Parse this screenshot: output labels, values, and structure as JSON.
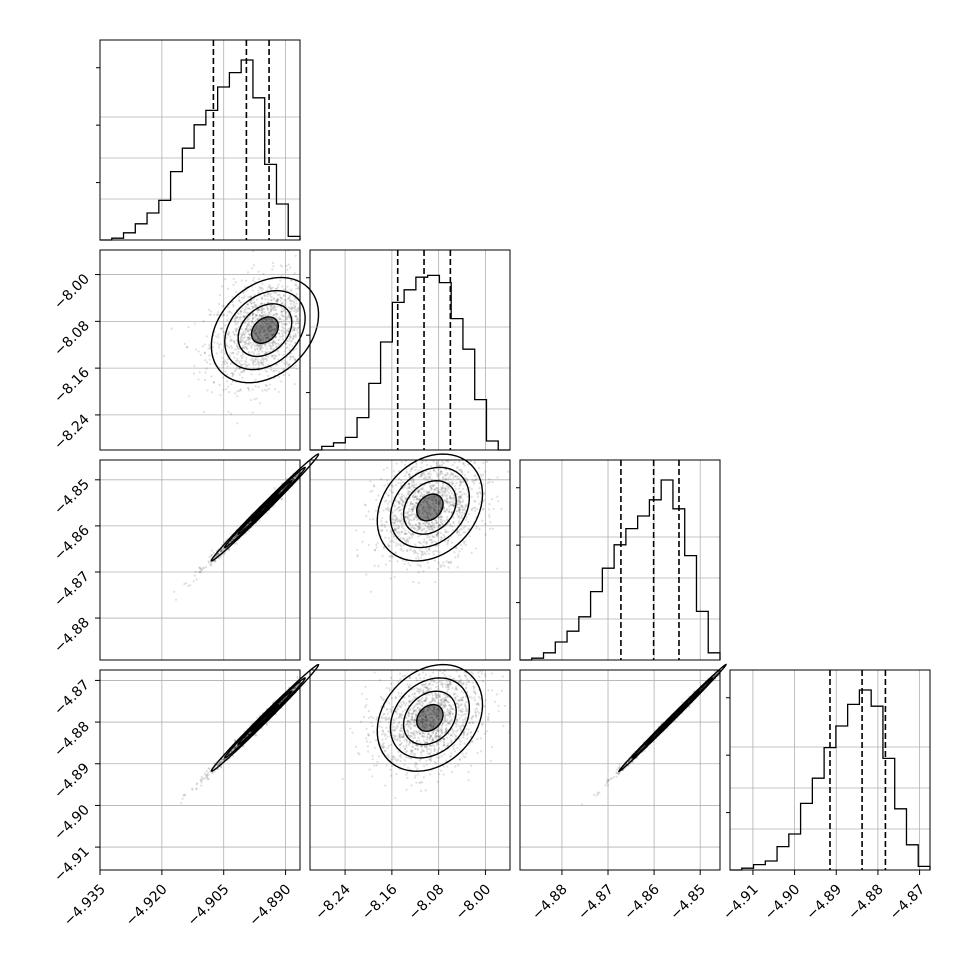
{
  "chart_data": {
    "type": "corner",
    "grid": true,
    "parameters": [
      {
        "range": [
          -4.935,
          -4.8865
        ],
        "ticks": [
          "−4.935",
          "−4.920",
          "−4.905",
          "−4.890"
        ],
        "tick_values": [
          -4.935,
          -4.92,
          -4.905,
          -4.89
        ],
        "quantiles": [
          -4.9075,
          -4.8995,
          -4.894
        ]
      },
      {
        "range": [
          -8.3,
          -7.958
        ],
        "ticks": [
          "−8.24",
          "−8.16",
          "−8.08",
          "−8.00"
        ],
        "tick_values": [
          -8.24,
          -8.16,
          -8.08,
          -8.0
        ],
        "quantiles": [
          -8.15,
          -8.105,
          -8.06
        ]
      },
      {
        "range": [
          -4.8891,
          -4.8457
        ],
        "ticks": [
          "−4.88",
          "−4.87",
          "−4.86",
          "−4.85"
        ],
        "tick_values": [
          -4.88,
          -4.87,
          -4.86,
          -4.85
        ],
        "quantiles": [
          -4.8672,
          -4.8601,
          -4.8546
        ]
      },
      {
        "range": [
          -4.9155,
          -4.8675
        ],
        "ticks": [
          "−4.91",
          "−4.90",
          "−4.89",
          "−4.88",
          "−4.87"
        ],
        "tick_values": [
          -4.91,
          -4.9,
          -4.89,
          -4.88,
          -4.87
        ],
        "quantiles": [
          -4.8915,
          -4.8838,
          -4.8782
        ]
      }
    ],
    "histograms": [
      [
        0.0,
        0.01,
        0.04,
        0.09,
        0.15,
        0.22,
        0.38,
        0.51,
        0.64,
        0.72,
        0.85,
        0.93,
        1.0,
        0.79,
        0.42,
        0.2,
        0.02
      ],
      [
        0.0,
        0.02,
        0.04,
        0.07,
        0.18,
        0.37,
        0.6,
        0.82,
        0.89,
        0.96,
        0.97,
        0.93,
        0.73,
        0.56,
        0.28,
        0.05,
        0.0
      ],
      [
        0.0,
        0.01,
        0.04,
        0.1,
        0.16,
        0.24,
        0.38,
        0.51,
        0.64,
        0.73,
        0.8,
        0.89,
        1.0,
        0.84,
        0.58,
        0.27,
        0.04
      ],
      [
        0.0,
        0.01,
        0.03,
        0.05,
        0.13,
        0.2,
        0.37,
        0.51,
        0.68,
        0.8,
        0.92,
        1.0,
        0.91,
        0.62,
        0.34,
        0.14,
        0.02
      ]
    ],
    "correlations": [
      [
        1.0,
        0.3,
        0.995,
        0.995
      ],
      [
        0.3,
        1.0,
        0.25,
        0.25
      ],
      [
        0.995,
        0.25,
        1.0,
        0.998
      ],
      [
        0.995,
        0.25,
        0.998,
        1.0
      ]
    ],
    "modes": [
      -4.895,
      -8.095,
      -4.856,
      -4.879
    ],
    "sigmas": [
      0.0065,
      0.045,
      0.0058,
      0.0064
    ]
  }
}
